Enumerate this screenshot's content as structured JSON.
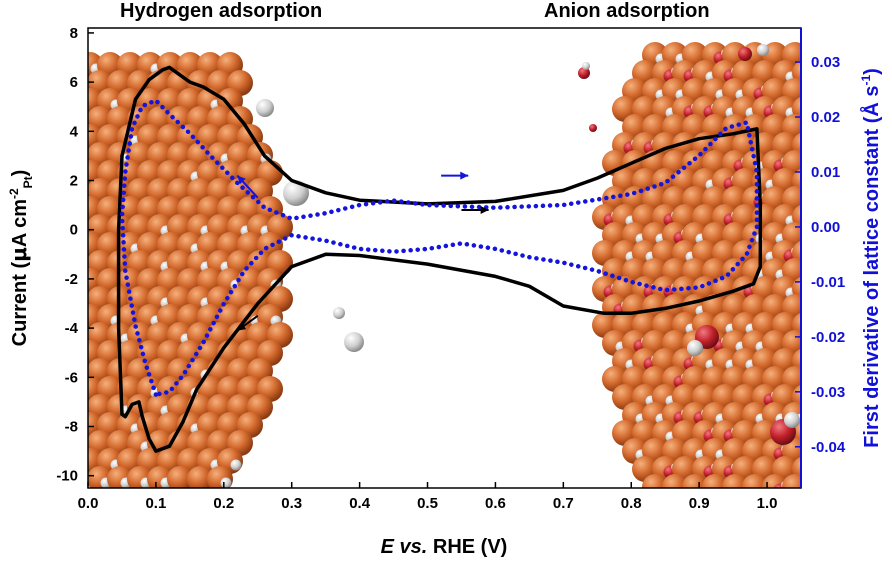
{
  "chart_data": {
    "type": "line",
    "title": "",
    "region_labels": [
      "Hydrogen adsorption",
      "Anion adsorption"
    ],
    "xlabel": {
      "italic": "E vs.",
      "rest": " RHE (V)"
    },
    "ylabel": {
      "main": "Current (",
      "mu": "μ",
      "unit1": "A cm",
      "sup": "-2",
      "sub": "Pt",
      "close": ")"
    },
    "y2label": {
      "main": "First derivative of lattice constant (",
      "unit": "Å s",
      "sup": "-1",
      "close": ")"
    },
    "xlim": [
      0.0,
      1.05
    ],
    "ylim": [
      -10.5,
      8.2
    ],
    "y2lim": [
      -0.0475,
      0.0362
    ],
    "xticks": [
      "0.0",
      "0.1",
      "0.2",
      "0.3",
      "0.4",
      "0.5",
      "0.6",
      "0.7",
      "0.8",
      "0.9",
      "1.0"
    ],
    "yticks": [
      "-10",
      "-8",
      "-6",
      "-4",
      "-2",
      "0",
      "2",
      "4",
      "6",
      "8"
    ],
    "y2ticks": [
      "-0.04",
      "-0.03",
      "-0.02",
      "-0.01",
      "0.00",
      "0.01",
      "0.02",
      "0.03"
    ],
    "series": [
      {
        "name": "Current (CV)",
        "axis": "left",
        "color": "#000000",
        "style": "solid",
        "points": [
          [
            0.05,
            -7.5
          ],
          [
            0.045,
            -4.0
          ],
          [
            0.045,
            0.0
          ],
          [
            0.05,
            3.0
          ],
          [
            0.07,
            5.3
          ],
          [
            0.09,
            6.1
          ],
          [
            0.11,
            6.5
          ],
          [
            0.12,
            6.6
          ],
          [
            0.13,
            6.4
          ],
          [
            0.15,
            6.0
          ],
          [
            0.17,
            5.8
          ],
          [
            0.2,
            5.3
          ],
          [
            0.23,
            4.3
          ],
          [
            0.26,
            3.0
          ],
          [
            0.3,
            2.0
          ],
          [
            0.35,
            1.5
          ],
          [
            0.4,
            1.2
          ],
          [
            0.5,
            1.05
          ],
          [
            0.6,
            1.15
          ],
          [
            0.7,
            1.6
          ],
          [
            0.75,
            2.1
          ],
          [
            0.8,
            2.7
          ],
          [
            0.85,
            3.3
          ],
          [
            0.9,
            3.7
          ],
          [
            0.95,
            3.9
          ],
          [
            0.985,
            4.1
          ],
          [
            0.99,
            1.0
          ],
          [
            0.99,
            -1.5
          ],
          [
            0.98,
            -2.2
          ],
          [
            0.95,
            -2.5
          ],
          [
            0.9,
            -2.9
          ],
          [
            0.85,
            -3.2
          ],
          [
            0.8,
            -3.4
          ],
          [
            0.76,
            -3.4
          ],
          [
            0.7,
            -3.1
          ],
          [
            0.65,
            -2.3
          ],
          [
            0.6,
            -1.9
          ],
          [
            0.5,
            -1.4
          ],
          [
            0.4,
            -1.05
          ],
          [
            0.35,
            -1.0
          ],
          [
            0.3,
            -1.5
          ],
          [
            0.25,
            -3.0
          ],
          [
            0.2,
            -4.8
          ],
          [
            0.16,
            -6.5
          ],
          [
            0.14,
            -7.8
          ],
          [
            0.12,
            -8.8
          ],
          [
            0.1,
            -9.0
          ],
          [
            0.09,
            -8.5
          ],
          [
            0.08,
            -7.6
          ],
          [
            0.075,
            -7.0
          ],
          [
            0.065,
            -7.1
          ],
          [
            0.055,
            -7.6
          ],
          [
            0.05,
            -7.5
          ]
        ]
      },
      {
        "name": "First derivative of lattice constant",
        "axis": "right",
        "color": "#1414dc",
        "style": "dotted",
        "points": [
          [
            0.1,
            -0.0305
          ],
          [
            0.085,
            -0.025
          ],
          [
            0.07,
            -0.018
          ],
          [
            0.055,
            -0.008
          ],
          [
            0.05,
            0.002
          ],
          [
            0.055,
            0.01
          ],
          [
            0.065,
            0.018
          ],
          [
            0.08,
            0.022
          ],
          [
            0.1,
            0.023
          ],
          [
            0.12,
            0.0205
          ],
          [
            0.15,
            0.017
          ],
          [
            0.18,
            0.013
          ],
          [
            0.22,
            0.008
          ],
          [
            0.26,
            0.0035
          ],
          [
            0.3,
            0.0015
          ],
          [
            0.35,
            0.0025
          ],
          [
            0.4,
            0.004
          ],
          [
            0.45,
            0.0048
          ],
          [
            0.5,
            0.004
          ],
          [
            0.6,
            0.0035
          ],
          [
            0.7,
            0.004
          ],
          [
            0.8,
            0.006
          ],
          [
            0.85,
            0.008
          ],
          [
            0.9,
            0.013
          ],
          [
            0.94,
            0.018
          ],
          [
            0.97,
            0.019
          ],
          [
            0.985,
            0.01
          ],
          [
            0.985,
            0.0
          ],
          [
            0.97,
            -0.005
          ],
          [
            0.94,
            -0.009
          ],
          [
            0.9,
            -0.011
          ],
          [
            0.85,
            -0.0115
          ],
          [
            0.8,
            -0.01
          ],
          [
            0.75,
            -0.008
          ],
          [
            0.7,
            -0.0065
          ],
          [
            0.65,
            -0.0055
          ],
          [
            0.6,
            -0.004
          ],
          [
            0.55,
            -0.003
          ],
          [
            0.5,
            -0.004
          ],
          [
            0.45,
            -0.0045
          ],
          [
            0.4,
            -0.004
          ],
          [
            0.35,
            -0.0025
          ],
          [
            0.3,
            -0.0015
          ],
          [
            0.26,
            -0.004
          ],
          [
            0.23,
            -0.008
          ],
          [
            0.2,
            -0.014
          ],
          [
            0.17,
            -0.021
          ],
          [
            0.14,
            -0.027
          ],
          [
            0.12,
            -0.03
          ],
          [
            0.1,
            -0.0305
          ]
        ]
      }
    ],
    "annotations": [
      {
        "type": "arrow",
        "color": "#1414dc",
        "from": [
          0.25,
          1.3
        ],
        "to": [
          0.22,
          2.2
        ]
      },
      {
        "type": "arrow",
        "color": "#1414dc",
        "from": [
          0.52,
          2.2
        ],
        "to": [
          0.56,
          2.2
        ]
      },
      {
        "type": "arrow",
        "color": "#000000",
        "from": [
          0.55,
          0.8
        ],
        "to": [
          0.59,
          0.8
        ]
      },
      {
        "type": "arrow",
        "color": "#000000",
        "from": [
          0.25,
          -3.5
        ],
        "to": [
          0.22,
          -4.1
        ]
      }
    ],
    "colors": {
      "left_axis": "#000000",
      "right_axis": "#1010d8",
      "platinum": "#d2682c",
      "hydrogen": "#cfcfcf",
      "oxygen": "#c4222c"
    }
  }
}
